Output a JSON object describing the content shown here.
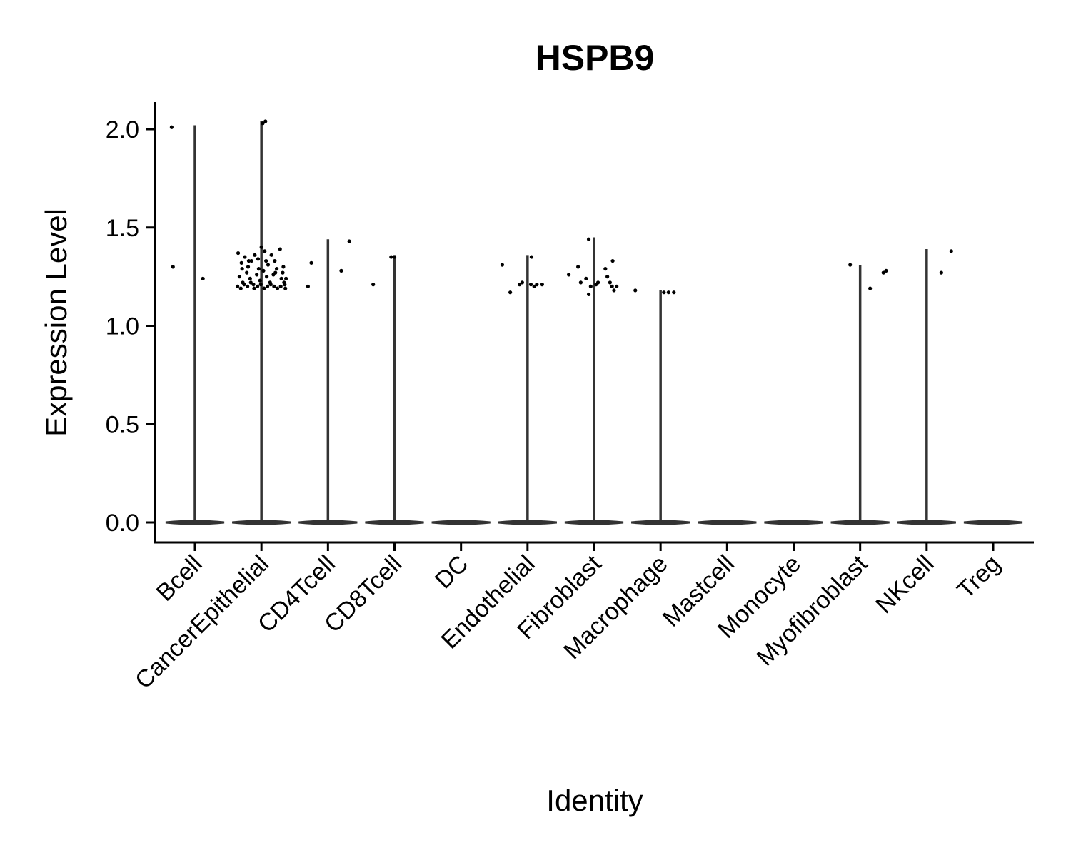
{
  "chart_data": {
    "type": "violin",
    "title": "HSPB9",
    "xlabel": "Identity",
    "ylabel": "Expression Level",
    "ylim": [
      -0.1,
      2.13
    ],
    "yticks": [
      0.0,
      0.5,
      1.0,
      1.5,
      2.0
    ],
    "ytick_labels": [
      "0.0",
      "0.5",
      "1.0",
      "1.5",
      "2.0"
    ],
    "grid": false,
    "legend": "none",
    "colors": {
      "axis": "#000000",
      "violin": "#333333",
      "points": "#000000"
    },
    "categories": [
      "Bcell",
      "CancerEpithelial",
      "CD4Tcell",
      "CD8Tcell",
      "DC",
      "Endothelial",
      "Fibroblast",
      "Macrophage",
      "Mastcell",
      "Monocyte",
      "Myofibroblast",
      "NKcell",
      "Treg"
    ],
    "violin_max": [
      2.02,
      2.04,
      1.44,
      1.36,
      0.0,
      1.36,
      1.45,
      1.18,
      0.0,
      0.0,
      1.31,
      1.39,
      0.0
    ],
    "points": [
      [
        [
          -0.35,
          2.01
        ],
        [
          -0.33,
          1.3
        ],
        [
          0.12,
          1.24
        ]
      ],
      [
        [
          -0.35,
          1.37
        ],
        [
          -0.3,
          1.32
        ],
        [
          -0.25,
          1.35
        ],
        [
          -0.2,
          1.3
        ],
        [
          -0.15,
          1.33
        ],
        [
          -0.1,
          1.36
        ],
        [
          -0.05,
          1.34
        ],
        [
          0.0,
          1.4
        ],
        [
          0.05,
          1.38
        ],
        [
          0.1,
          1.31
        ],
        [
          0.15,
          1.36
        ],
        [
          0.2,
          1.33
        ],
        [
          0.28,
          1.39
        ],
        [
          0.33,
          1.3
        ],
        [
          -0.33,
          1.25
        ],
        [
          -0.28,
          1.22
        ],
        [
          -0.22,
          1.27
        ],
        [
          -0.17,
          1.24
        ],
        [
          -0.12,
          1.21
        ],
        [
          -0.07,
          1.26
        ],
        [
          -0.02,
          1.23
        ],
        [
          0.03,
          1.28
        ],
        [
          0.08,
          1.25
        ],
        [
          0.13,
          1.22
        ],
        [
          0.18,
          1.26
        ],
        [
          0.23,
          1.29
        ],
        [
          0.3,
          1.24
        ],
        [
          0.35,
          1.21
        ],
        [
          -0.36,
          1.2
        ],
        [
          -0.31,
          1.19
        ],
        [
          -0.26,
          1.21
        ],
        [
          -0.21,
          1.2
        ],
        [
          -0.16,
          1.22
        ],
        [
          -0.11,
          1.19
        ],
        [
          -0.06,
          1.2
        ],
        [
          -0.01,
          1.21
        ],
        [
          0.04,
          1.19
        ],
        [
          0.09,
          1.2
        ],
        [
          0.14,
          1.21
        ],
        [
          0.19,
          1.2
        ],
        [
          0.24,
          1.19
        ],
        [
          0.29,
          1.2
        ],
        [
          0.34,
          1.22
        ],
        [
          0.37,
          1.24
        ],
        [
          -0.29,
          1.29
        ],
        [
          -0.19,
          1.33
        ],
        [
          -0.04,
          1.29
        ],
        [
          0.07,
          1.33
        ],
        [
          0.21,
          1.27
        ],
        [
          0.32,
          1.27
        ],
        [
          0.02,
          2.03
        ],
        [
          0.06,
          2.04
        ],
        [
          0.36,
          1.19
        ]
      ],
      [
        [
          -0.3,
          1.2
        ],
        [
          -0.25,
          1.32
        ],
        [
          0.2,
          1.28
        ],
        [
          0.32,
          1.43
        ]
      ],
      [
        [
          -0.32,
          1.21
        ],
        [
          -0.05,
          1.35
        ],
        [
          0.0,
          1.35
        ]
      ],
      [],
      [
        [
          -0.38,
          1.31
        ],
        [
          -0.26,
          1.17
        ],
        [
          -0.12,
          1.21
        ],
        [
          -0.08,
          1.22
        ],
        [
          0.05,
          1.21
        ],
        [
          0.1,
          1.2
        ],
        [
          0.14,
          1.21
        ],
        [
          0.22,
          1.21
        ],
        [
          0.06,
          1.35
        ]
      ],
      [
        [
          -0.38,
          1.26
        ],
        [
          -0.24,
          1.3
        ],
        [
          -0.2,
          1.22
        ],
        [
          -0.12,
          1.24
        ],
        [
          -0.08,
          1.16
        ],
        [
          -0.05,
          1.2
        ],
        [
          0.06,
          1.22
        ],
        [
          0.17,
          1.29
        ],
        [
          0.2,
          1.25
        ],
        [
          0.24,
          1.22
        ],
        [
          0.27,
          1.2
        ],
        [
          0.3,
          1.18
        ],
        [
          0.28,
          1.33
        ],
        [
          0.34,
          1.2
        ],
        [
          0.62,
          1.18
        ],
        [
          -0.08,
          1.44
        ],
        [
          0.03,
          1.21
        ]
      ],
      [
        [
          0.05,
          1.17
        ],
        [
          0.12,
          1.17
        ],
        [
          0.2,
          1.17
        ]
      ],
      [],
      [],
      [
        [
          -0.15,
          1.31
        ],
        [
          0.15,
          1.19
        ],
        [
          0.35,
          1.27
        ],
        [
          0.39,
          1.28
        ]
      ],
      [
        [
          0.22,
          1.27
        ],
        [
          0.37,
          1.38
        ]
      ],
      []
    ]
  }
}
